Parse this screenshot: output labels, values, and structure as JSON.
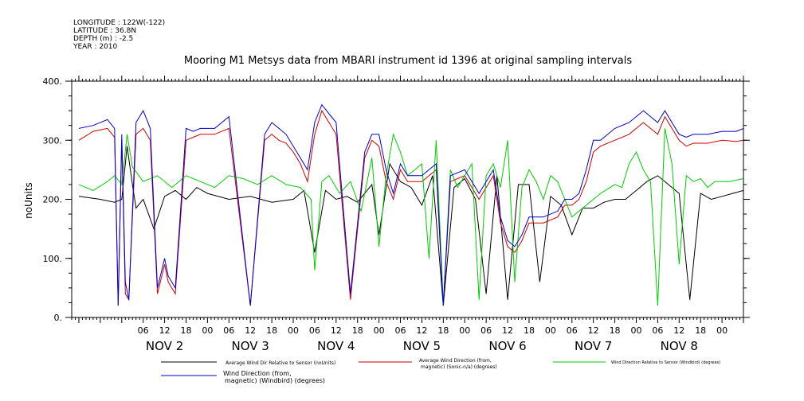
{
  "metadata": [
    "LONGITUDE : 122W(-122)",
    "LATITUDE : 36.8N",
    "DEPTH (m) : -2.5",
    "YEAR : 2010"
  ],
  "chart_data": {
    "type": "line",
    "title": "Mooring M1 Metsys data from MBARI instrument id 1396 at original sampling intervals",
    "xlabel": "",
    "ylabel": "noUnits",
    "ylim": [
      0,
      400
    ],
    "y_ticks": [
      "0.",
      "100.",
      "200.",
      "300.",
      "400."
    ],
    "xlim_hours": [
      -14,
      174
    ],
    "x_unit": "hours from 2010-11-02 00:00",
    "x_hour_ticks": [
      "06",
      "12",
      "18",
      "00",
      "06",
      "12",
      "18",
      "00",
      "06",
      "12",
      "18",
      "00",
      "06",
      "12",
      "18",
      "00",
      "06",
      "12",
      "18",
      "00",
      "06",
      "12",
      "18",
      "00",
      "06",
      "12",
      "18",
      "00"
    ],
    "date_labels": [
      "NOV 2",
      "NOV 3",
      "NOV 4",
      "NOV 5",
      "NOV 6",
      "NOV 7",
      "NOV 8"
    ],
    "grid": false,
    "legend_placement": "bottom",
    "series": [
      {
        "name": "Average Wind Dir Relative to Sensor (noUnits)",
        "color": "#000000",
        "x": [
          -12,
          -6,
          -2,
          0,
          1.5,
          3,
          4,
          6,
          9,
          12,
          15,
          18,
          21,
          24,
          30,
          36,
          42,
          48,
          51,
          54,
          57,
          60,
          63,
          66,
          70,
          72,
          75,
          78,
          81,
          84,
          87,
          90,
          93,
          96,
          99,
          102,
          105,
          108,
          111,
          114,
          117,
          120,
          123,
          126,
          129,
          132,
          135,
          138,
          141,
          144,
          147,
          150,
          153,
          156,
          159,
          162,
          165,
          168,
          171,
          174
        ],
        "y": [
          205,
          200,
          195,
          200,
          290,
          225,
          185,
          200,
          150,
          205,
          215,
          200,
          220,
          210,
          200,
          205,
          195,
          200,
          215,
          110,
          215,
          200,
          205,
          195,
          225,
          140,
          260,
          230,
          220,
          190,
          240,
          20,
          220,
          235,
          200,
          40,
          240,
          30,
          225,
          225,
          60,
          205,
          190,
          140,
          185,
          185,
          195,
          200,
          200,
          215,
          230,
          240,
          225,
          210,
          30,
          210,
          200,
          205,
          210,
          215
        ]
      },
      {
        "name": "Average Wind Direction (from, magnetic) (Sonic-n/a) (degrees)",
        "color": "#cc0000",
        "x": [
          -12,
          -8,
          -4,
          -2,
          -1,
          0,
          1,
          2,
          4,
          6,
          8,
          10,
          12,
          13,
          15,
          18,
          20,
          22,
          26,
          30,
          36,
          40,
          42,
          44,
          46,
          48,
          50,
          52,
          54,
          56,
          60,
          64,
          68,
          70,
          72,
          74,
          76,
          78,
          80,
          84,
          88,
          90,
          92,
          96,
          100,
          104,
          106,
          108,
          110,
          112,
          114,
          118,
          122,
          124,
          126,
          128,
          130,
          132,
          134,
          138,
          142,
          146,
          150,
          152,
          154,
          156,
          158,
          160,
          164,
          168,
          172,
          174
        ],
        "y": [
          300,
          315,
          320,
          305,
          20,
          300,
          40,
          30,
          310,
          320,
          300,
          40,
          90,
          60,
          40,
          300,
          305,
          310,
          310,
          320,
          20,
          300,
          310,
          300,
          295,
          280,
          260,
          230,
          310,
          350,
          310,
          30,
          270,
          300,
          290,
          230,
          200,
          250,
          230,
          230,
          250,
          20,
          230,
          240,
          200,
          240,
          160,
          120,
          110,
          130,
          160,
          160,
          170,
          190,
          190,
          200,
          230,
          280,
          290,
          300,
          310,
          330,
          310,
          340,
          320,
          300,
          290,
          295,
          295,
          300,
          298,
          300
        ]
      },
      {
        "name": "Wind Direction Relative to Sensor (Windbird) (degrees)",
        "color": "#00cc00",
        "x": [
          -12,
          -8,
          -4,
          -2,
          0,
          1.5,
          3,
          6,
          10,
          14,
          18,
          22,
          26,
          30,
          34,
          38,
          42,
          46,
          50,
          53,
          54,
          56,
          58,
          61,
          64,
          67,
          70,
          72,
          74,
          76,
          78,
          80,
          82,
          84,
          86,
          88,
          90,
          92,
          94,
          96,
          98,
          100,
          102,
          104,
          106,
          108,
          110,
          112,
          114,
          116,
          118,
          120,
          122,
          126,
          130,
          134,
          138,
          140,
          142,
          144,
          146,
          148,
          150,
          152,
          154,
          156,
          158,
          160,
          162,
          164,
          166,
          170,
          174
        ],
        "y": [
          225,
          215,
          230,
          240,
          225,
          310,
          255,
          230,
          240,
          220,
          240,
          230,
          220,
          240,
          235,
          225,
          240,
          225,
          220,
          200,
          80,
          230,
          240,
          210,
          230,
          180,
          270,
          120,
          240,
          310,
          280,
          240,
          250,
          260,
          100,
          300,
          20,
          250,
          220,
          240,
          260,
          30,
          240,
          260,
          220,
          300,
          60,
          220,
          250,
          230,
          200,
          240,
          230,
          170,
          190,
          210,
          225,
          220,
          260,
          280,
          250,
          230,
          20,
          320,
          260,
          90,
          240,
          230,
          235,
          220,
          230,
          230,
          235
        ]
      },
      {
        "name": "Wind Direction (from, magnetic) (Windbird) (degrees)",
        "color": "#0000cc",
        "x": [
          -12,
          -8,
          -4,
          -2,
          -1,
          0,
          1,
          2,
          4,
          6,
          8,
          10,
          12,
          13,
          15,
          18,
          20,
          22,
          26,
          30,
          36,
          40,
          42,
          44,
          46,
          48,
          50,
          52,
          54,
          56,
          60,
          64,
          68,
          70,
          72,
          74,
          76,
          78,
          80,
          84,
          88,
          90,
          92,
          96,
          100,
          104,
          106,
          108,
          110,
          112,
          114,
          118,
          122,
          124,
          126,
          128,
          130,
          132,
          134,
          138,
          142,
          146,
          150,
          152,
          154,
          156,
          158,
          160,
          164,
          168,
          172,
          174
        ],
        "y": [
          320,
          325,
          335,
          320,
          20,
          310,
          60,
          30,
          330,
          350,
          320,
          50,
          100,
          70,
          50,
          320,
          315,
          320,
          320,
          340,
          20,
          310,
          330,
          320,
          310,
          290,
          270,
          250,
          330,
          360,
          330,
          40,
          280,
          310,
          310,
          250,
          210,
          260,
          240,
          240,
          260,
          20,
          240,
          250,
          210,
          250,
          170,
          130,
          120,
          140,
          170,
          170,
          180,
          200,
          200,
          210,
          250,
          300,
          300,
          320,
          330,
          350,
          330,
          350,
          330,
          310,
          305,
          310,
          310,
          315,
          315,
          320
        ]
      }
    ]
  }
}
